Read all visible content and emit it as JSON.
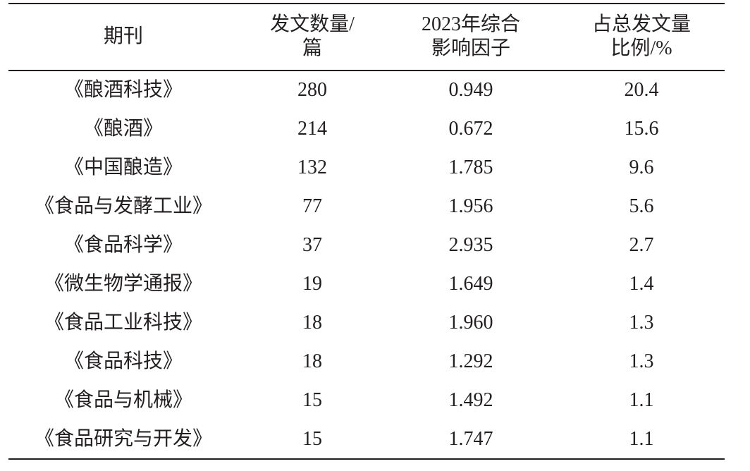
{
  "table": {
    "header": [
      [
        "期刊"
      ],
      [
        "发文数量/",
        "篇"
      ],
      [
        "2023年综合",
        "影响因子"
      ],
      [
        "占总发文量",
        "比例/%"
      ]
    ],
    "rows": [
      [
        "《酿酒科技》",
        "280",
        "0.949",
        "20.4"
      ],
      [
        "《酿酒》",
        "214",
        "0.672",
        "15.6"
      ],
      [
        "《中国酿造》",
        "132",
        "1.785",
        "9.6"
      ],
      [
        "《食品与发酵工业》",
        "77",
        "1.956",
        "5.6"
      ],
      [
        "《食品科学》",
        "37",
        "2.935",
        "2.7"
      ],
      [
        "《微生物学通报》",
        "19",
        "1.649",
        "1.4"
      ],
      [
        "《食品工业科技》",
        "18",
        "1.960",
        "1.3"
      ],
      [
        "《食品科技》",
        "18",
        "1.292",
        "1.3"
      ],
      [
        "《食品与机械》",
        "15",
        "1.492",
        "1.1"
      ],
      [
        "《食品研究与开发》",
        "15",
        "1.747",
        "1.1"
      ]
    ]
  }
}
